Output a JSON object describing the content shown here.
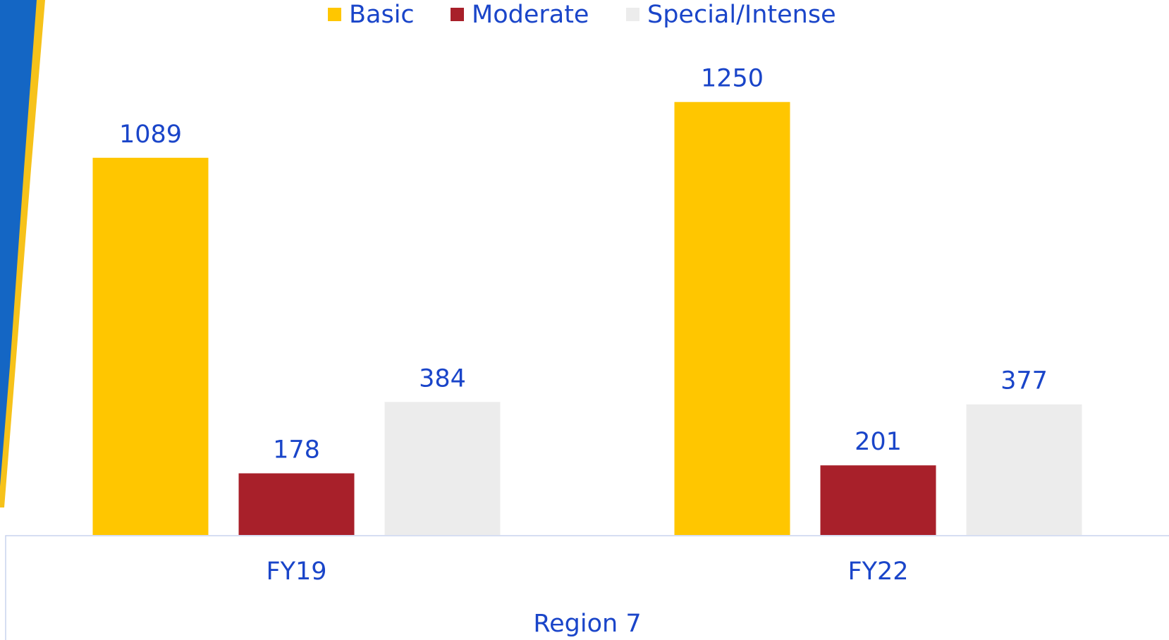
{
  "chart_data": {
    "type": "bar",
    "categories": [
      "FY19",
      "FY22"
    ],
    "x_label": "Region 7",
    "series": [
      {
        "name": "Basic",
        "color": "#ffc600",
        "values": [
          1089,
          1250
        ]
      },
      {
        "name": "Moderate",
        "color": "#a8202a",
        "values": [
          178,
          201
        ]
      },
      {
        "name": "Special/Intense",
        "color": "#ececec",
        "values": [
          384,
          377
        ]
      }
    ],
    "ylim": [
      0,
      1400
    ],
    "legend": "top"
  }
}
